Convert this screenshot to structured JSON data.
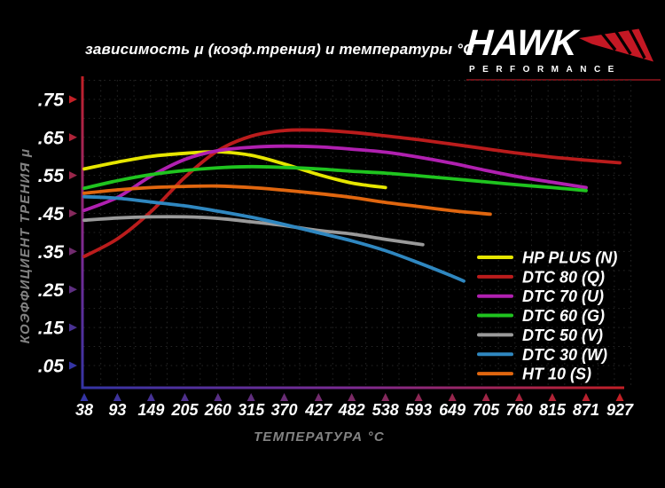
{
  "title": "зависимость μ (коэф.трения) и температуры °C",
  "logo": {
    "brand": "HAWK",
    "subtitle": "PERFORMANCE",
    "wing_color": "#c41824",
    "underline_color": "#6e1016"
  },
  "chart_data": {
    "type": "line",
    "title": "зависимость μ (коэф.трения) и температуры °C",
    "xlabel": "ТЕМПЕРАТУРА °C",
    "ylabel": "КОЭФФИЦИЕНТ ТРЕНИЯ μ",
    "x_ticks": [
      38,
      93,
      149,
      205,
      260,
      315,
      370,
      427,
      482,
      538,
      593,
      649,
      705,
      760,
      815,
      871,
      927
    ],
    "x_tick_labels": [
      "38",
      "93",
      "149",
      "205",
      "260",
      "315",
      "370",
      "427",
      "482",
      "538",
      "593",
      "649",
      "705",
      "760",
      "815",
      "871",
      "927"
    ],
    "y_ticks": [
      0.05,
      0.15,
      0.25,
      0.35,
      0.45,
      0.55,
      0.65,
      0.75
    ],
    "y_tick_labels": [
      ".05",
      ".15",
      ".25",
      ".35",
      ".45",
      ".55",
      ".65",
      ".75"
    ],
    "xlim": [
      38,
      955
    ],
    "ylim": [
      0,
      0.8
    ],
    "grid": true,
    "grid_color": "#262626",
    "legend_position": "lower-right",
    "axis_gradient": {
      "hot": "#c22026",
      "mid": "#7c2a92",
      "cold": "#3434a4"
    },
    "series": [
      {
        "name": "HP PLUS (N)",
        "color": "#e6e600",
        "points": [
          [
            38,
            0.567
          ],
          [
            93,
            0.585
          ],
          [
            149,
            0.6
          ],
          [
            205,
            0.608
          ],
          [
            260,
            0.612
          ],
          [
            315,
            0.603
          ],
          [
            370,
            0.58
          ],
          [
            427,
            0.552
          ],
          [
            482,
            0.53
          ],
          [
            538,
            0.518
          ]
        ]
      },
      {
        "name": "DTC 80 (Q)",
        "color": "#bb1c1c",
        "points": [
          [
            38,
            0.337
          ],
          [
            93,
            0.383
          ],
          [
            149,
            0.455
          ],
          [
            205,
            0.545
          ],
          [
            260,
            0.615
          ],
          [
            315,
            0.653
          ],
          [
            370,
            0.668
          ],
          [
            427,
            0.669
          ],
          [
            482,
            0.663
          ],
          [
            538,
            0.654
          ],
          [
            593,
            0.644
          ],
          [
            649,
            0.632
          ],
          [
            705,
            0.62
          ],
          [
            760,
            0.608
          ],
          [
            815,
            0.598
          ],
          [
            871,
            0.59
          ],
          [
            927,
            0.583
          ]
        ]
      },
      {
        "name": "DTC 70 (U)",
        "color": "#b020b0",
        "points": [
          [
            38,
            0.458
          ],
          [
            93,
            0.492
          ],
          [
            149,
            0.548
          ],
          [
            205,
            0.592
          ],
          [
            260,
            0.615
          ],
          [
            315,
            0.624
          ],
          [
            370,
            0.627
          ],
          [
            427,
            0.625
          ],
          [
            482,
            0.619
          ],
          [
            538,
            0.611
          ],
          [
            593,
            0.598
          ],
          [
            649,
            0.582
          ],
          [
            705,
            0.563
          ],
          [
            760,
            0.546
          ],
          [
            815,
            0.532
          ],
          [
            871,
            0.518
          ]
        ]
      },
      {
        "name": "DTC 60 (G)",
        "color": "#1fc41f",
        "points": [
          [
            38,
            0.516
          ],
          [
            93,
            0.536
          ],
          [
            149,
            0.552
          ],
          [
            205,
            0.563
          ],
          [
            260,
            0.57
          ],
          [
            315,
            0.573
          ],
          [
            370,
            0.571
          ],
          [
            427,
            0.567
          ],
          [
            482,
            0.561
          ],
          [
            538,
            0.556
          ],
          [
            593,
            0.549
          ],
          [
            649,
            0.541
          ],
          [
            705,
            0.533
          ],
          [
            760,
            0.525
          ],
          [
            815,
            0.518
          ],
          [
            871,
            0.51
          ]
        ]
      },
      {
        "name": "DTC 50 (V)",
        "color": "#9a9a9a",
        "points": [
          [
            38,
            0.432
          ],
          [
            93,
            0.438
          ],
          [
            149,
            0.441
          ],
          [
            205,
            0.441
          ],
          [
            260,
            0.437
          ],
          [
            315,
            0.428
          ],
          [
            370,
            0.418
          ],
          [
            427,
            0.405
          ],
          [
            482,
            0.396
          ],
          [
            538,
            0.382
          ],
          [
            600,
            0.368
          ]
        ]
      },
      {
        "name": "DTC 30 (W)",
        "color": "#2f87c0",
        "points": [
          [
            38,
            0.494
          ],
          [
            93,
            0.49
          ],
          [
            149,
            0.48
          ],
          [
            205,
            0.47
          ],
          [
            260,
            0.456
          ],
          [
            315,
            0.44
          ],
          [
            370,
            0.421
          ],
          [
            427,
            0.399
          ],
          [
            482,
            0.378
          ],
          [
            538,
            0.352
          ],
          [
            593,
            0.32
          ],
          [
            649,
            0.285
          ],
          [
            668,
            0.272
          ]
        ]
      },
      {
        "name": "HT 10 (S)",
        "color": "#e0660f",
        "points": [
          [
            38,
            0.503
          ],
          [
            93,
            0.512
          ],
          [
            149,
            0.518
          ],
          [
            205,
            0.521
          ],
          [
            260,
            0.522
          ],
          [
            315,
            0.518
          ],
          [
            370,
            0.511
          ],
          [
            427,
            0.502
          ],
          [
            482,
            0.492
          ],
          [
            538,
            0.479
          ],
          [
            593,
            0.468
          ],
          [
            649,
            0.457
          ],
          [
            712,
            0.448
          ]
        ]
      }
    ]
  }
}
